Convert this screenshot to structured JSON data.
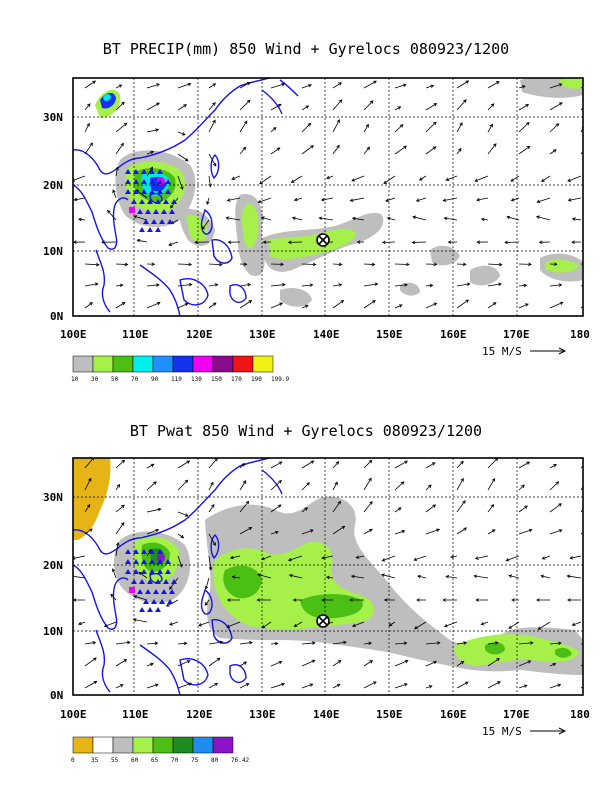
{
  "panel1": {
    "title": "BT PRECIP(mm) 850 Wind + Gyrelocs 080923/1200",
    "colorbar_labels": [
      "10",
      "30",
      "50",
      "70",
      "90",
      "110",
      "130",
      "150",
      "170",
      "190",
      "199.9"
    ],
    "colorbar_colors": [
      "#bebebe",
      "#a6f04a",
      "#4cbf14",
      "#00f0f0",
      "#1e90ff",
      "#1432f0",
      "#f000f0",
      "#8c0a8c",
      "#f01414",
      "#f0f014"
    ]
  },
  "panel2": {
    "title": "BT Pwat 850 Wind + Gyrelocs 080923/1200",
    "colorbar_labels": [
      "0",
      "35",
      "55",
      "60",
      "65",
      "70",
      "75",
      "80",
      "76.42"
    ],
    "colorbar_colors": [
      "#e6b414",
      "#ffffff",
      "#bebebe",
      "#a6f04a",
      "#4cbf14",
      "#1e8c1e",
      "#1e8cf0",
      "#8c14c8"
    ]
  },
  "axes": {
    "lon_labels": [
      "100E",
      "110E",
      "120E",
      "130E",
      "140E",
      "150E",
      "160E",
      "170E",
      "180"
    ],
    "lat_labels": [
      "30N",
      "20N",
      "10N",
      "0N"
    ]
  },
  "scale_label": "15 M/S"
}
